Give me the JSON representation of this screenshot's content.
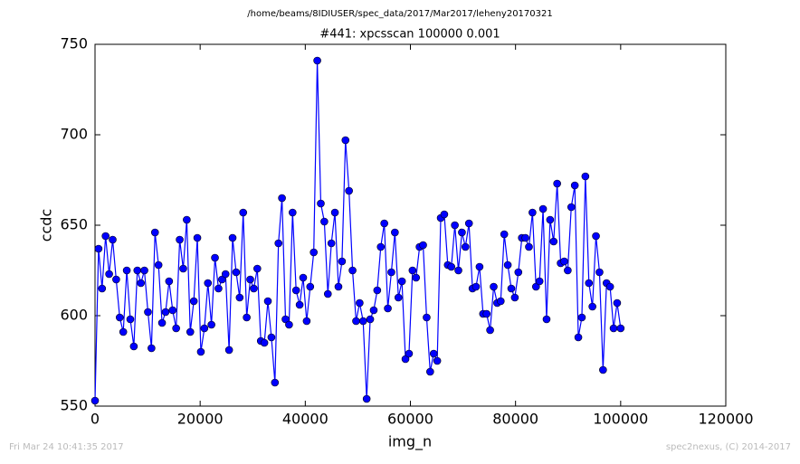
{
  "chart_data": {
    "type": "line",
    "suptitle": "/home/beams/8IDIUSER/spec_data/2017/Mar2017/leheny20170321",
    "title": "#441: xpcsscan 100000 0.001",
    "xlabel": "img_n",
    "ylabel": "ccdc",
    "footer_left": "Fri Mar 24 10:41:35 2017",
    "footer_right": "spec2nexus, (C) 2014-2017",
    "xlim": [
      0,
      120000
    ],
    "xticks": [
      0,
      20000,
      40000,
      60000,
      80000,
      100000,
      120000
    ],
    "ylim": [
      550,
      750
    ],
    "yticks": [
      550,
      600,
      650,
      700,
      750
    ],
    "grid": false,
    "x": [
      0,
      671,
      1342,
      2013,
      2685,
      3356,
      4027,
      4698,
      5369,
      6040,
      6711,
      7383,
      8054,
      8725,
      9396,
      10067,
      10738,
      11409,
      12081,
      12752,
      13423,
      14094,
      14765,
      15436,
      16107,
      16779,
      17450,
      18121,
      18792,
      19463,
      20134,
      20805,
      21477,
      22148,
      22819,
      23490,
      24161,
      24832,
      25503,
      26174,
      26846,
      27517,
      28188,
      28859,
      29530,
      30201,
      30872,
      31544,
      32215,
      32886,
      33557,
      34228,
      34899,
      35570,
      36242,
      36913,
      37584,
      38255,
      38926,
      39597,
      40268,
      40940,
      41611,
      42282,
      42953,
      43624,
      44295,
      44966,
      45638,
      46309,
      46980,
      47651,
      48322,
      48993,
      49664,
      50336,
      51007,
      51678,
      52349,
      53020,
      53691,
      54362,
      55034,
      55705,
      56376,
      57047,
      57718,
      58389,
      59060,
      59732,
      60403,
      61074,
      61745,
      62416,
      63087,
      63758,
      64430,
      65101,
      65772,
      66443,
      67114,
      67785,
      68456,
      69128,
      69799,
      70470,
      71141,
      71812,
      72483,
      73154,
      73826,
      74497,
      75168,
      75839,
      76510,
      77181,
      77852,
      78523,
      79195,
      79866,
      80537,
      81208,
      81879,
      82550,
      83221,
      83893,
      84564,
      85235,
      85906,
      86577,
      87248,
      87919,
      88591,
      89262,
      89933,
      90604,
      91275,
      91946,
      92617,
      93289,
      93960,
      94631,
      95302,
      95973,
      96644,
      97315,
      97987,
      98658,
      99329,
      100000
    ],
    "series": [
      {
        "color": "#0000ff",
        "values": [
          553,
          637,
          615,
          644,
          623,
          642,
          620,
          599,
          591,
          625,
          598,
          583,
          625,
          618,
          625,
          602,
          582,
          646,
          628,
          596,
          602,
          619,
          603,
          593,
          642,
          626,
          653,
          591,
          608,
          643,
          580,
          593,
          618,
          595,
          632,
          615,
          620,
          623,
          581,
          643,
          624,
          610,
          657,
          599,
          620,
          615,
          626,
          586,
          585,
          608,
          588,
          563,
          640,
          665,
          598,
          595,
          657,
          614,
          606,
          621,
          597,
          616,
          635,
          741,
          662,
          652,
          612,
          640,
          657,
          616,
          630,
          697,
          669,
          625,
          597,
          607,
          597,
          554,
          598,
          603,
          614,
          638,
          651,
          604,
          624,
          646,
          610,
          619,
          576,
          579,
          625,
          621,
          638,
          639,
          599,
          569,
          579,
          575,
          654,
          656,
          628,
          627,
          650,
          625,
          646,
          638,
          651,
          615,
          616,
          627,
          601,
          601,
          592,
          616,
          607,
          608,
          645,
          628,
          615,
          610,
          624,
          643,
          643,
          638,
          657,
          616,
          619,
          659,
          598,
          653,
          641,
          673,
          629,
          630,
          625,
          660,
          672,
          588,
          599,
          677,
          618,
          605,
          644,
          624,
          570,
          618,
          616,
          593,
          607,
          593
        ]
      }
    ]
  }
}
